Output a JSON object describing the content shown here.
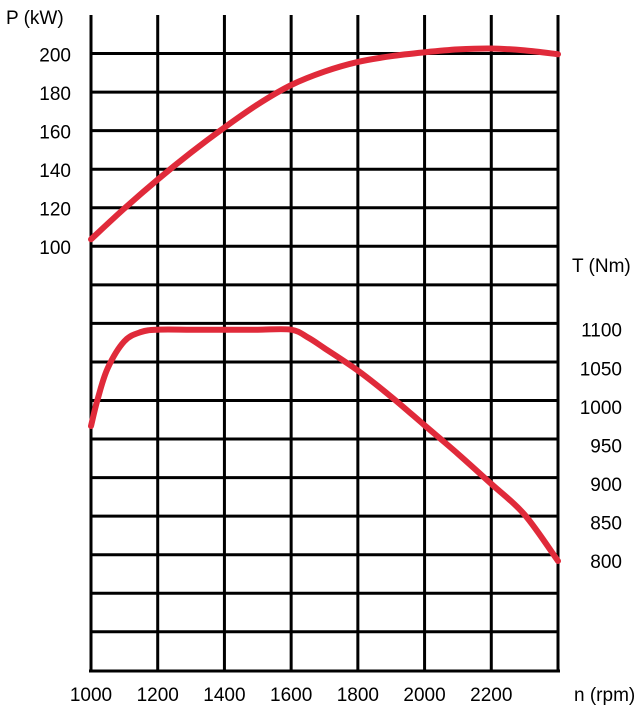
{
  "chart_data": {
    "type": "line",
    "title": "",
    "x": {
      "label": "n (rpm)",
      "range": [
        1000,
        2400
      ],
      "ticks": [
        1000,
        1200,
        1400,
        1600,
        1800,
        2000,
        2200
      ]
    },
    "y_power": {
      "label": "P (kW)",
      "ticks": [
        100,
        120,
        140,
        160,
        180,
        200
      ]
    },
    "y_torque": {
      "label": "T (Nm)",
      "ticks": [
        800,
        850,
        900,
        950,
        1000,
        1050,
        1100
      ]
    },
    "grid": true,
    "series": [
      {
        "axis": "power",
        "color": "#e02a3a",
        "x": [
          1000,
          1100,
          1200,
          1300,
          1400,
          1500,
          1600,
          1700,
          1800,
          1900,
          2000,
          2100,
          2200,
          2300,
          2400
        ],
        "y": [
          104,
          120,
          135,
          149,
          162,
          174,
          184,
          191,
          196,
          199,
          201,
          202.5,
          203,
          202,
          200
        ]
      },
      {
        "axis": "torque",
        "color": "#e02a3a",
        "x": [
          1000,
          1020,
          1050,
          1100,
          1150,
          1200,
          1300,
          1400,
          1500,
          1600,
          1650,
          1700,
          1800,
          1900,
          2000,
          2100,
          2200,
          2300,
          2400
        ],
        "y": [
          975,
          1010,
          1050,
          1085,
          1097,
          1100,
          1100,
          1100,
          1100,
          1100,
          1090,
          1076,
          1047,
          1013,
          976,
          939,
          900,
          860,
          800
        ]
      }
    ]
  }
}
